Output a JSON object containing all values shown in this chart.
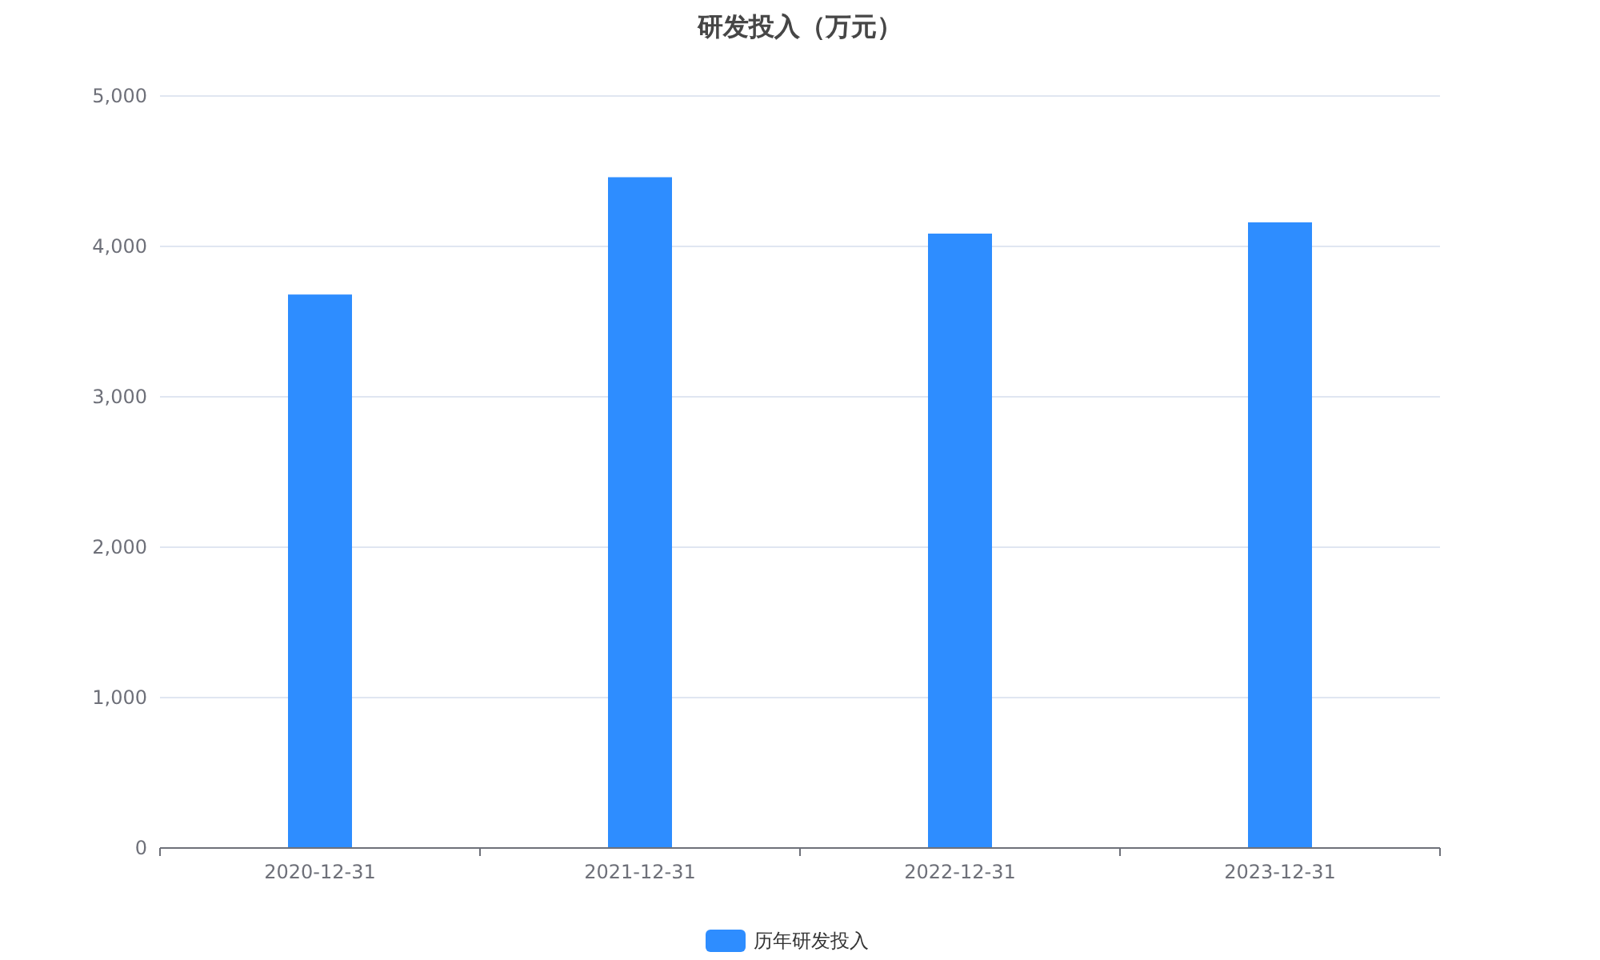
{
  "chart_data": {
    "type": "bar",
    "title": "研发投入（万元）",
    "categories": [
      "2020-12-31",
      "2021-12-31",
      "2022-12-31",
      "2023-12-31"
    ],
    "series": [
      {
        "name": "历年研发投入",
        "color": "#2e8dff",
        "values": [
          3680,
          4460,
          4085,
          4160
        ]
      }
    ],
    "ylim": [
      0,
      5000
    ],
    "yticks": [
      0,
      {
        "value": 1000,
        "label": "1,000"
      },
      {
        "value": 2000,
        "label": "2,000"
      },
      {
        "value": 3000,
        "label": "3,000"
      },
      {
        "value": 4000,
        "label": "4,000"
      },
      {
        "value": 5000,
        "label": "5,000"
      }
    ],
    "grid": "y",
    "legend": "bottom"
  }
}
